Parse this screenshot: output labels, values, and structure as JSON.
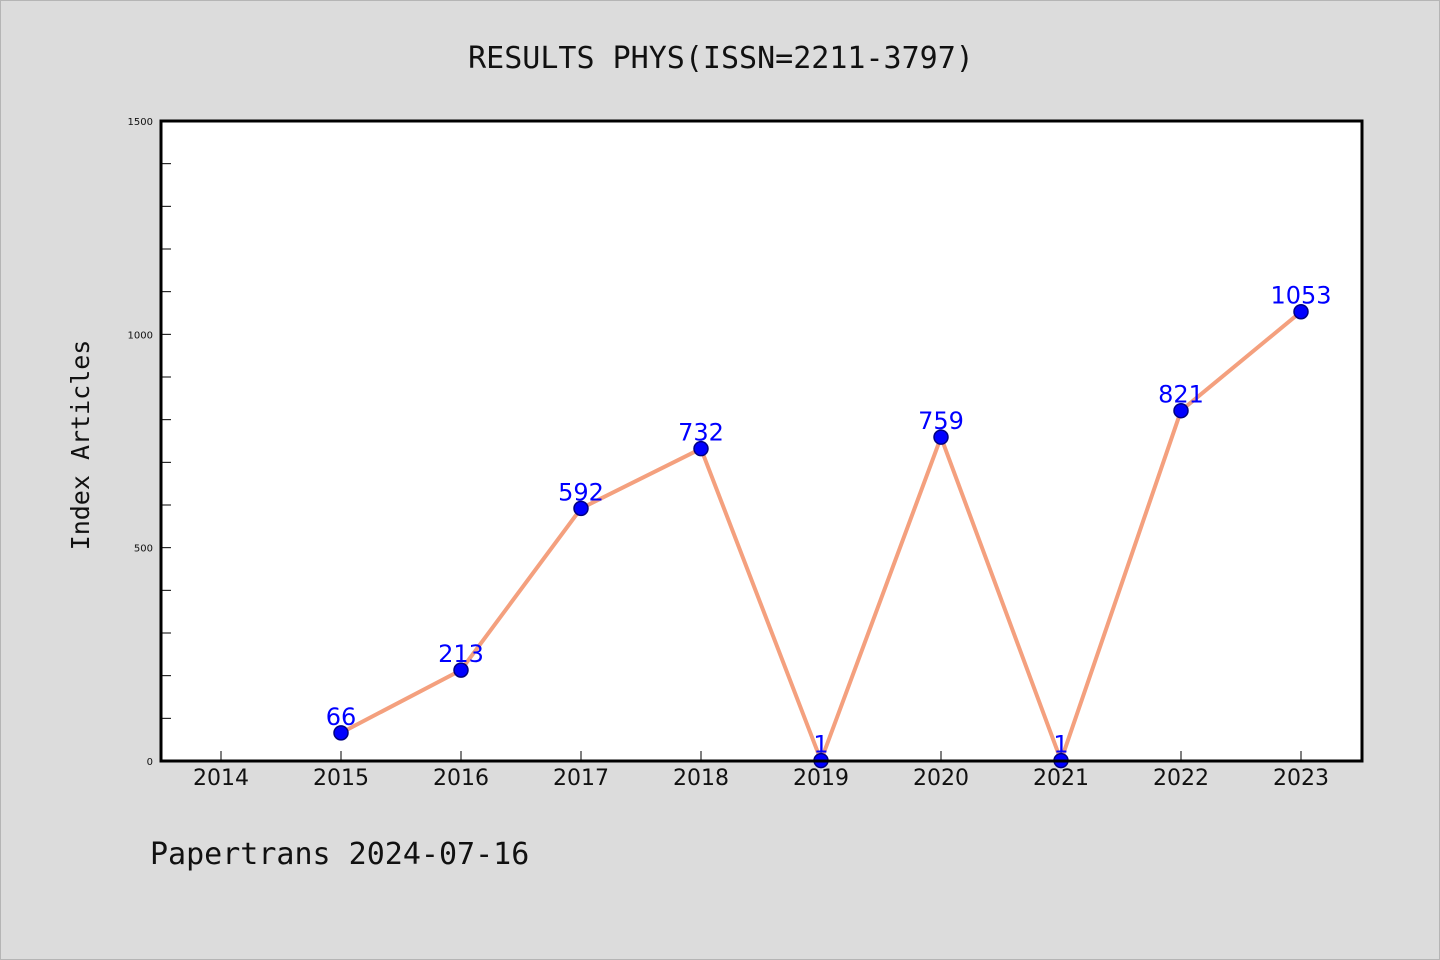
{
  "chart_data": {
    "type": "line",
    "title": "RESULTS PHYS(ISSN=2211-3797)",
    "xlabel": "",
    "ylabel": "Index Articles",
    "categories": [
      "2014",
      "2015",
      "2016",
      "2017",
      "2018",
      "2019",
      "2020",
      "2021",
      "2022",
      "2023"
    ],
    "series": [
      {
        "points": [
          {
            "x": "2015",
            "y": 66
          },
          {
            "x": "2016",
            "y": 213
          },
          {
            "x": "2017",
            "y": 592
          },
          {
            "x": "2018",
            "y": 732
          },
          {
            "x": "2019",
            "y": 1
          },
          {
            "x": "2020",
            "y": 759
          },
          {
            "x": "2021",
            "y": 1
          },
          {
            "x": "2022",
            "y": 821
          },
          {
            "x": "2023",
            "y": 1053
          }
        ]
      }
    ],
    "ylim": [
      0,
      1500
    ],
    "yticks": [
      0,
      500,
      1000,
      1500
    ],
    "grid": false,
    "colors": {
      "line": "#f4a07e",
      "marker": "#0000ff",
      "marker_edge": "#000080",
      "label": "#0000ff",
      "plot_bg": "#ffffff",
      "figure_bg": "#dcdcdc"
    }
  },
  "footer": {
    "text": "Papertrans 2024-07-16"
  }
}
